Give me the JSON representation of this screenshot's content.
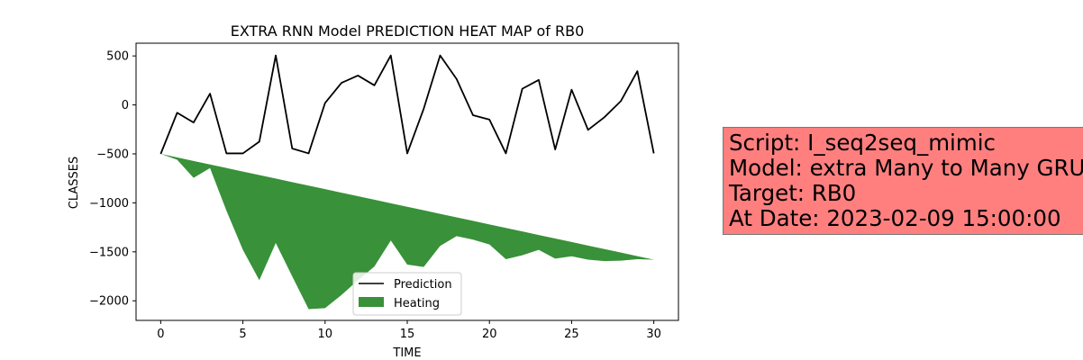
{
  "chart_data": {
    "type": "line",
    "title": "EXTRA RNN Model PREDICTION HEAT MAP of RB0",
    "xlabel": "TIME",
    "ylabel": "CLASSES",
    "xlim": [
      -1.5,
      31.5
    ],
    "ylim": [
      -2200,
      630
    ],
    "xticks": [
      0,
      5,
      10,
      15,
      20,
      25,
      30
    ],
    "yticks": [
      500,
      0,
      -500,
      -1000,
      -1500,
      -2000
    ],
    "legend_position": "lower center",
    "x": [
      0,
      1,
      2,
      3,
      4,
      5,
      6,
      7,
      8,
      9,
      10,
      11,
      12,
      13,
      14,
      15,
      16,
      17,
      18,
      19,
      20,
      21,
      22,
      23,
      24,
      25,
      26,
      27,
      28,
      29,
      30
    ],
    "series": [
      {
        "name": "Prediction",
        "type": "line",
        "color": "#000000",
        "values": [
          -500,
          -80,
          -180,
          115,
          -495,
          -495,
          -375,
          505,
          -445,
          -495,
          20,
          225,
          300,
          200,
          505,
          -495,
          -40,
          505,
          265,
          -105,
          -150,
          -495,
          165,
          255,
          -455,
          155,
          -255,
          -125,
          40,
          345,
          -495
        ]
      },
      {
        "name": "Heating",
        "type": "area",
        "color": "#2e8b2e",
        "upper": [
          -500,
          -536,
          -572,
          -608,
          -644,
          -680,
          -716,
          -752,
          -788,
          -824,
          -860,
          -896,
          -932,
          -968,
          -1004,
          -1040,
          -1076,
          -1112,
          -1148,
          -1184,
          -1220,
          -1256,
          -1292,
          -1328,
          -1364,
          -1400,
          -1436,
          -1472,
          -1508,
          -1544,
          -1580
        ],
        "lower": [
          -500,
          -560,
          -745,
          -645,
          -1080,
          -1480,
          -1790,
          -1410,
          -1750,
          -2085,
          -2075,
          -1940,
          -1790,
          -1650,
          -1385,
          -1630,
          -1655,
          -1440,
          -1340,
          -1375,
          -1425,
          -1575,
          -1535,
          -1480,
          -1570,
          -1545,
          -1580,
          -1595,
          -1590,
          -1575,
          -1580
        ]
      }
    ]
  },
  "info_box": {
    "lines": [
      "Script: I_seq2seq_mimic",
      "Model: extra Many to Many GRU",
      "Target: RB0",
      "At Date: 2023-02-09 15:00:00"
    ],
    "background": "#ff7f7f"
  }
}
